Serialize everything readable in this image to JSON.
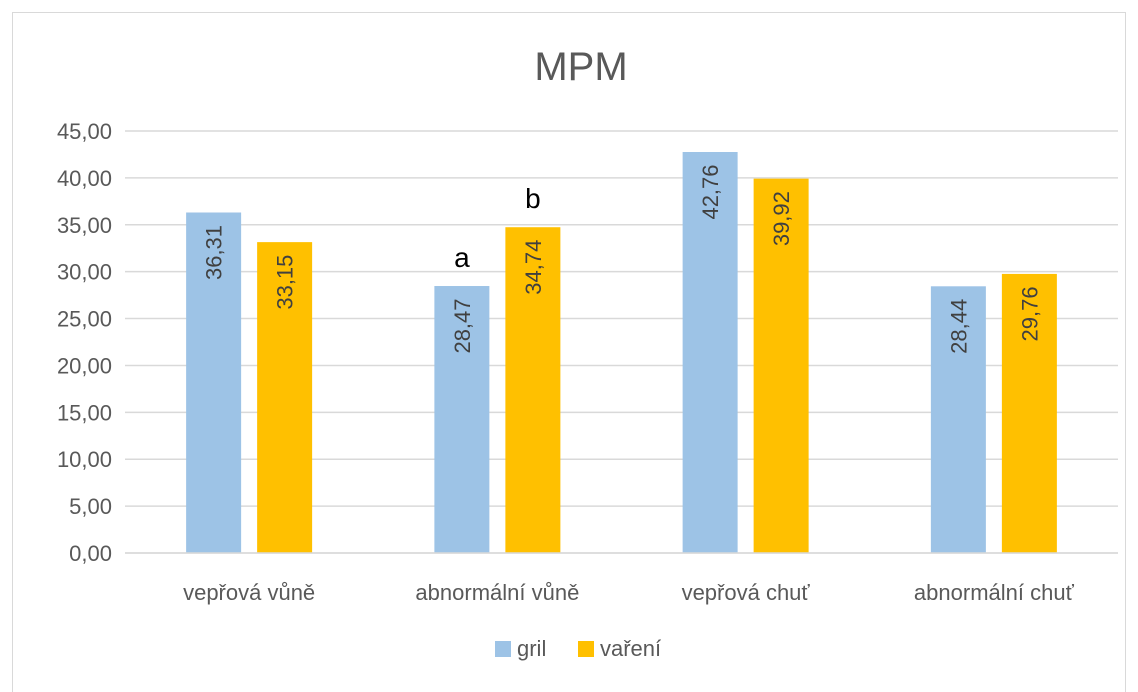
{
  "chart_data": {
    "type": "bar",
    "title": "MPM",
    "categories": [
      "vepřová vůně",
      "abnormální vůně",
      "vepřová chuť",
      "abnormální chuť"
    ],
    "series": [
      {
        "name": "gril",
        "values": [
          36.31,
          28.47,
          42.76,
          28.44
        ],
        "labels": [
          "36,31",
          "28,47",
          "42,76",
          "28,44"
        ],
        "color": "#9dc3e6"
      },
      {
        "name": "vaření",
        "values": [
          33.15,
          34.74,
          39.92,
          29.76
        ],
        "labels": [
          "33,15",
          "34,74",
          "39,92",
          "29,76"
        ],
        "color": "#ffc000"
      }
    ],
    "ylim": [
      0,
      45
    ],
    "yticks": [
      0,
      5,
      10,
      15,
      20,
      25,
      30,
      35,
      40,
      45
    ],
    "ytick_labels": [
      "0,00",
      "5,00",
      "10,00",
      "15,00",
      "20,00",
      "25,00",
      "30,00",
      "35,00",
      "40,00",
      "45,00"
    ],
    "annotations": [
      {
        "text": "a",
        "category": "abnormální vůně",
        "series": "gril"
      },
      {
        "text": "b",
        "category": "abnormální vůně",
        "series": "vaření"
      }
    ],
    "grid": true,
    "legend_position": "bottom"
  }
}
